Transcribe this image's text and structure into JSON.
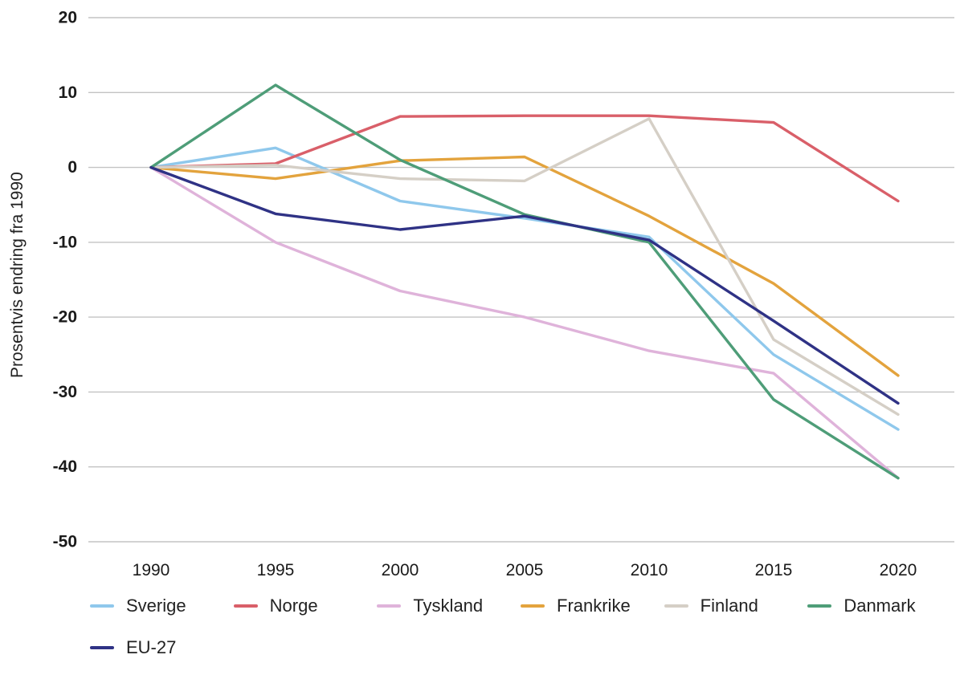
{
  "chart_data": {
    "type": "line",
    "title": "",
    "xlabel": "",
    "ylabel": "Prosentvis endring fra 1990",
    "x": [
      1990,
      1995,
      2000,
      2005,
      2010,
      2015,
      2020
    ],
    "ylim": [
      -50,
      20
    ],
    "yticks": [
      20,
      10,
      0,
      -10,
      -20,
      -30,
      -40,
      -50
    ],
    "grid": true,
    "grid_color": "#c3c3c3",
    "text_color": "#1a1a1a",
    "legend_position": "bottom",
    "series": [
      {
        "name": "Sverige",
        "color": "#8fc8ec",
        "values": [
          0,
          2.6,
          -4.5,
          -6.8,
          -9.3,
          -25,
          -35
        ]
      },
      {
        "name": "Norge",
        "color": "#d95f69",
        "values": [
          0,
          0.5,
          6.8,
          6.9,
          6.9,
          6,
          -4.5
        ]
      },
      {
        "name": "Tyskland",
        "color": "#dfb3da",
        "values": [
          0,
          -10,
          -16.5,
          -20,
          -24.5,
          -27.5,
          -41.5
        ]
      },
      {
        "name": "Frankrike",
        "color": "#e3a33d",
        "values": [
          0,
          -1.5,
          0.9,
          1.4,
          -6.5,
          -15.5,
          -27.8
        ]
      },
      {
        "name": "Finland",
        "color": "#d5cfc6",
        "values": [
          0,
          0.3,
          -1.5,
          -1.8,
          6.5,
          -23,
          -33
        ]
      },
      {
        "name": "Danmark",
        "color": "#4e9d78",
        "values": [
          0,
          11,
          1,
          -6.3,
          -10,
          -31,
          -41.5
        ]
      },
      {
        "name": "EU-27",
        "color": "#2f3285",
        "values": [
          0,
          -6.2,
          -8.3,
          -6.5,
          -9.7,
          -20.5,
          -31.5
        ]
      }
    ]
  }
}
